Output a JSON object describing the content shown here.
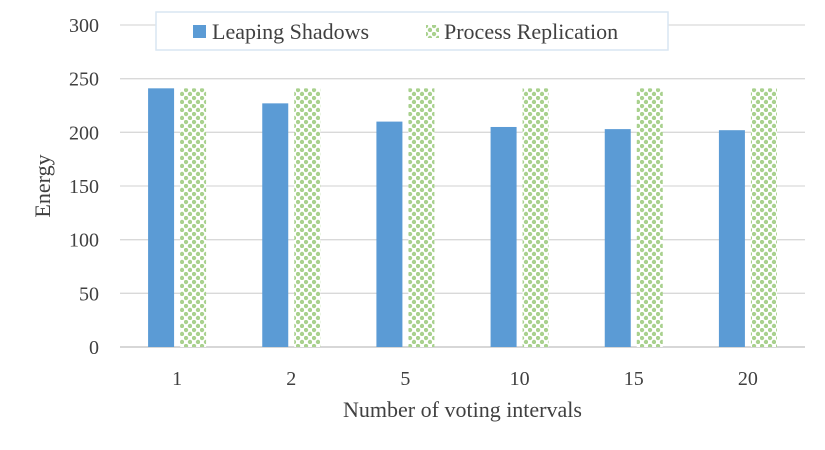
{
  "chart_data": {
    "type": "bar",
    "categories": [
      "1",
      "2",
      "5",
      "10",
      "15",
      "20"
    ],
    "series": [
      {
        "name": "Leaping Shadows",
        "values": [
          241,
          227,
          210,
          205,
          203,
          202
        ],
        "color": "#5b9bd5",
        "pattern": "solid"
      },
      {
        "name": "Process Replication",
        "values": [
          241,
          241,
          241,
          241,
          241,
          241
        ],
        "color": "#a9d18e",
        "pattern": "checker"
      }
    ],
    "title": "",
    "xlabel": "Number of voting intervals",
    "ylabel": "Energy",
    "ylim": [
      0,
      300
    ],
    "yticks": [
      0,
      50,
      100,
      150,
      200,
      250,
      300
    ],
    "grid": true,
    "legend_position": "top"
  }
}
